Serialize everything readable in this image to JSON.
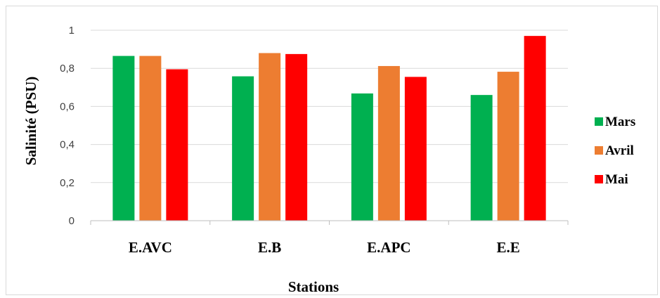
{
  "chart_data": {
    "type": "bar",
    "title": "",
    "xlabel": "Stations",
    "ylabel": "Salinité (PSU)",
    "categories": [
      "E.AVC",
      "E.B",
      "E.APC",
      "E.E"
    ],
    "series": [
      {
        "name": "Mars",
        "color": "#00b050",
        "values": [
          0.865,
          0.758,
          0.668,
          0.66
        ]
      },
      {
        "name": "Avril",
        "color": "#ed7d31",
        "values": [
          0.865,
          0.88,
          0.812,
          0.782
        ]
      },
      {
        "name": "Mai",
        "color": "#ff0000",
        "values": [
          0.795,
          0.875,
          0.755,
          0.97
        ]
      }
    ],
    "ylim": [
      0,
      1
    ],
    "yticks": [
      0,
      0.2,
      0.4,
      0.6,
      0.8,
      1
    ],
    "ytick_labels": [
      "0",
      "0,2",
      "0,4",
      "0,6",
      "0,8",
      "1"
    ],
    "grid": true,
    "legend_position": "right"
  }
}
